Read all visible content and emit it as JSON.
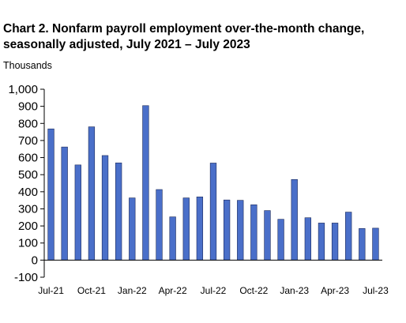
{
  "chart_data": {
    "type": "bar",
    "title_line1": "Chart 2. Nonfarm payroll employment over-the-month change,",
    "title_line2": "seasonally adjusted, July 2021 – July 2023",
    "units_label": "Thousands",
    "categories": [
      "Jul-21",
      "Aug-21",
      "Sep-21",
      "Oct-21",
      "Nov-21",
      "Dec-21",
      "Jan-22",
      "Feb-22",
      "Mar-22",
      "Apr-22",
      "May-22",
      "Jun-22",
      "Jul-22",
      "Aug-22",
      "Sep-22",
      "Oct-22",
      "Nov-22",
      "Dec-22",
      "Jan-23",
      "Feb-23",
      "Mar-23",
      "Apr-23",
      "May-23",
      "Jun-23",
      "Jul-23"
    ],
    "x_tick_labels": [
      "Jul-21",
      "Oct-21",
      "Jan-22",
      "Apr-22",
      "Jul-22",
      "Oct-22",
      "Jan-23",
      "Apr-23",
      "Jul-23"
    ],
    "values": [
      768,
      662,
      557,
      780,
      612,
      569,
      364,
      904,
      413,
      253,
      364,
      370,
      568,
      352,
      350,
      324,
      290,
      239,
      472,
      248,
      217,
      217,
      281,
      185,
      187
    ],
    "ylim": [
      -100,
      1000
    ],
    "y_ticks": [
      "-100",
      "0",
      "100",
      "200",
      "300",
      "400",
      "500",
      "600",
      "700",
      "800",
      "900",
      "1,000"
    ],
    "bar_color": "#4a6fc9",
    "bar_stroke": "#1c2a5a",
    "grid": false,
    "legend": "none"
  }
}
